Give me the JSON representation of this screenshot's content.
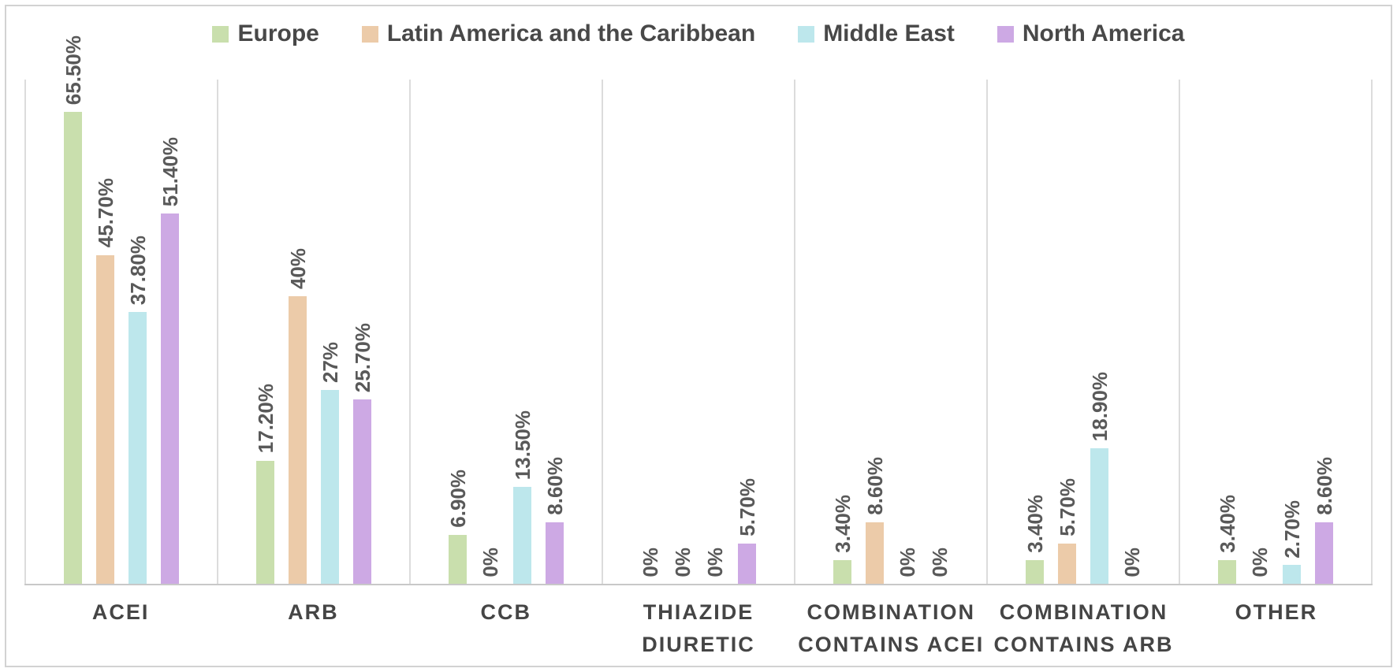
{
  "chart_data": {
    "type": "bar",
    "title": "",
    "xlabel": "",
    "ylabel": "",
    "ylim": [
      0,
      70
    ],
    "legend_position": "top",
    "grid": "vertical-category-separators",
    "value_label_rotation": "bottom-to-top",
    "categories": [
      "ACEI",
      "ARB",
      "CCB",
      "THIAZIDE DIURETIC",
      "COMBINATION CONTAINS ACEI",
      "COMBINATION CONTAINS ARB",
      "OTHER"
    ],
    "category_label_lines": [
      [
        "ACEI"
      ],
      [
        "ARB"
      ],
      [
        "CCB"
      ],
      [
        "THIAZIDE",
        "DIURETIC"
      ],
      [
        "COMBINATION",
        "CONTAINS ACEI"
      ],
      [
        "COMBINATION",
        "CONTAINS ARB"
      ],
      [
        "OTHER"
      ]
    ],
    "series": [
      {
        "name": "Europe",
        "color": "#c9dfad",
        "values": [
          65.5,
          17.2,
          6.9,
          0,
          3.4,
          3.4,
          3.4
        ],
        "labels": [
          "65.50%",
          "17.20%",
          "6.90%",
          "0%",
          "3.40%",
          "3.40%",
          "3.40%"
        ]
      },
      {
        "name": "Latin America and the Caribbean",
        "color": "#eccba9",
        "values": [
          45.7,
          40,
          0,
          0,
          8.6,
          5.7,
          0
        ],
        "labels": [
          "45.70%",
          "40%",
          "0%",
          "0%",
          "8.60%",
          "5.70%",
          "0%"
        ]
      },
      {
        "name": "Middle East",
        "color": "#bde7ec",
        "values": [
          37.8,
          27,
          13.5,
          0,
          0,
          18.9,
          2.7
        ],
        "labels": [
          "37.80%",
          "27%",
          "13.50%",
          "0%",
          "0%",
          "18.90%",
          "2.70%"
        ]
      },
      {
        "name": "North America",
        "color": "#cda9e4",
        "values": [
          51.4,
          25.7,
          8.6,
          5.7,
          0,
          0,
          8.6
        ],
        "labels": [
          "51.40%",
          "25.70%",
          "8.60%",
          "5.70%",
          "0%",
          "0%",
          "8.60%"
        ]
      }
    ],
    "colors": {
      "value_label_text": "#595959",
      "category_label_text": "#454545",
      "legend_text": "#484848",
      "separator_line": "#dcdcdc",
      "axis_line": "#c8c8c8",
      "frame_border": "#d2d2d2"
    }
  }
}
